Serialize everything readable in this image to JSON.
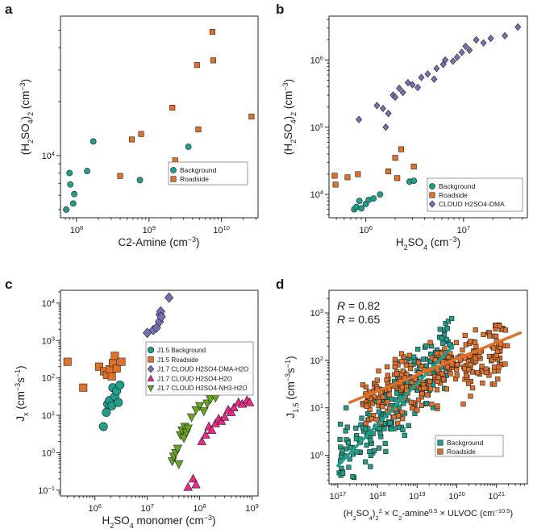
{
  "colors": {
    "background": "#1f9e89",
    "roadside": "#e0712b",
    "dma": "#7570b3",
    "h2o": "#e7298a",
    "nh3": "#66a61e"
  },
  "chart_data": [
    {
      "panel": "a",
      "type": "scatter",
      "xlabel": "C2-Amine (cm-3)",
      "ylabel": "(H2SO4)2 (cm-3)",
      "xscale": "log",
      "yscale": "log",
      "xlim": [
        60000000.0,
        32000000000.0
      ],
      "ylim": [
        4500,
        60000
      ],
      "xticks": [
        100000000.0,
        1000000000.0,
        10000000000.0
      ],
      "xtick_labels": [
        "10^8",
        "10^9",
        "10^10"
      ],
      "yticks": [
        10000.0
      ],
      "ytick_labels": [
        "10^4"
      ],
      "legend": {
        "position": "lower-right",
        "entries": [
          "Background",
          "Roadside"
        ]
      },
      "series": [
        {
          "name": "Background",
          "color": "#1f9e89",
          "marker": "circle",
          "points": [
            [
              72000000.0,
              5000
            ],
            [
              80000000.0,
              8000
            ],
            [
              82000000.0,
              6900
            ],
            [
              90000000.0,
              5400
            ],
            [
              93000000.0,
              6100
            ],
            [
              140000000.0,
              8200
            ],
            [
              170000000.0,
              12000
            ],
            [
              750000000.0,
              7300
            ],
            [
              3500000000.0,
              11200
            ]
          ]
        },
        {
          "name": "Roadside",
          "color": "#e0712b",
          "marker": "square",
          "points": [
            [
              400000000.0,
              7700
            ],
            [
              580000000.0,
              12300
            ],
            [
              780000000.0,
              13200
            ],
            [
              2100000000.0,
              18500
            ],
            [
              2300000000.0,
              9400
            ],
            [
              4800000000.0,
              14000
            ],
            [
              4600000000.0,
              32000
            ],
            [
              7500000000.0,
              49000
            ],
            [
              7700000000.0,
              34000
            ],
            [
              26000000000.0,
              16500
            ]
          ]
        }
      ]
    },
    {
      "panel": "b",
      "type": "scatter",
      "xlabel": "H2SO4 (cm-3)",
      "ylabel": "(H2SO4)2 (cm-3)",
      "xscale": "log",
      "yscale": "log",
      "xlim": [
        420000.0,
        45000000.0
      ],
      "ylim": [
        4500,
        4500000.0
      ],
      "xticks": [
        1000000.0,
        10000000.0
      ],
      "xtick_labels": [
        "10^6",
        "10^7"
      ],
      "yticks": [
        10000.0,
        100000.0,
        1000000.0
      ],
      "ytick_labels": [
        "10^4",
        "10^5",
        "10^6"
      ],
      "legend": {
        "position": "lower-right",
        "entries": [
          "Background",
          "Roadside",
          "CLOUD H2SO4-DMA"
        ]
      },
      "series": [
        {
          "name": "Background",
          "color": "#1f9e89",
          "marker": "circle",
          "points": [
            [
              760000.0,
              6000
            ],
            [
              800000.0,
              6500
            ],
            [
              860000.0,
              8000
            ],
            [
              900000.0,
              6200
            ],
            [
              1000000.0,
              7200
            ],
            [
              1070000.0,
              8300
            ],
            [
              1200000.0,
              8700
            ],
            [
              1400000.0,
              10000
            ],
            [
              2800000.0,
              15500
            ],
            [
              3100000.0,
              16000
            ]
          ]
        },
        {
          "name": "Roadside",
          "color": "#e0712b",
          "marker": "square",
          "points": [
            [
              480000.0,
              19000
            ],
            [
              490000.0,
              14000
            ],
            [
              650000.0,
              18000
            ],
            [
              830000.0,
              20000
            ],
            [
              1700000.0,
              22000
            ],
            [
              2000000.0,
              35000
            ],
            [
              2100000.0,
              17500
            ],
            [
              2300000.0,
              47000
            ],
            [
              3100000.0,
              26000
            ]
          ]
        },
        {
          "name": "CLOUD H2SO4-DMA",
          "color": "#7570b3",
          "marker": "diamond",
          "points": [
            [
              850000.0,
              130000.0
            ],
            [
              1300000.0,
              210000.0
            ],
            [
              1500000.0,
              190000.0
            ],
            [
              1600000.0,
              100000.0
            ],
            [
              1700000.0,
              160000.0
            ],
            [
              1900000.0,
              300000.0
            ],
            [
              2000000.0,
              280000.0
            ],
            [
              2200000.0,
              380000.0
            ],
            [
              2400000.0,
              330000.0
            ],
            [
              2700000.0,
              460000.0
            ],
            [
              3000000.0,
              430000.0
            ],
            [
              3400000.0,
              390000.0
            ],
            [
              3700000.0,
              550000.0
            ],
            [
              4300000.0,
              620000.0
            ],
            [
              5000000.0,
              520000.0
            ],
            [
              5300000.0,
              750000.0
            ],
            [
              6200000.0,
              860000.0
            ],
            [
              6500000.0,
              1000000.0
            ],
            [
              7800000.0,
              960000.0
            ],
            [
              8600000.0,
              1100000.0
            ],
            [
              9600000.0,
              1300000.0
            ],
            [
              10500000.0,
              1600000.0
            ],
            [
              11500000.0,
              1400000.0
            ],
            [
              13500000.0,
              2000000.0
            ],
            [
              16000000.0,
              1800000.0
            ],
            [
              19000000.0,
              2100000.0
            ],
            [
              26500000.0,
              2300000.0
            ],
            [
              36000000.0,
              3100000.0
            ]
          ]
        }
      ]
    },
    {
      "panel": "c",
      "type": "scatter",
      "xlabel": "H2SO4 monomer (cm-3)",
      "ylabel": "Jx (cm-3s-1)",
      "xscale": "log",
      "yscale": "log",
      "xlim": [
        220000.0,
        1300000000.0
      ],
      "ylim": [
        0.07,
        22000.0
      ],
      "xticks": [
        1000000.0,
        10000000.0,
        100000000.0,
        1000000000.0
      ],
      "xtick_labels": [
        "10^6",
        "10^7",
        "10^8",
        "10^9"
      ],
      "yticks": [
        0.1,
        1,
        10,
        100,
        1000,
        10000
      ],
      "ytick_labels": [
        "10^-1",
        "10^0",
        "10^1",
        "10^2",
        "10^3",
        "10^4"
      ],
      "legend": {
        "position": "top-right",
        "entries": [
          "J1.5 Background",
          "J1.5 Roadside",
          "J1.7 CLOUD H2SO4-DMA-H2O",
          "J1.7 CLOUD H2SO4-H2O",
          "J1.7 CLOUD H2SO4-NH3-H2O"
        ]
      },
      "series": [
        {
          "name": "J1.5 Background",
          "color": "#1f9e89",
          "marker": "circle",
          "points": [
            [
              1450000.0,
              5
            ],
            [
              1650000.0,
              12
            ],
            [
              1750000.0,
              20
            ],
            [
              1900000.0,
              25
            ],
            [
              2100000.0,
              18
            ],
            [
              2200000.0,
              55
            ],
            [
              2400000.0,
              32
            ],
            [
              2600000.0,
              45
            ],
            [
              2800000.0,
              22
            ],
            [
              3000000.0,
              65
            ]
          ]
        },
        {
          "name": "J1.5 Roadside",
          "color": "#e0712b",
          "marker": "square",
          "points": [
            [
              300000.0,
              270
            ],
            [
              600000.0,
              55
            ],
            [
              1200000.0,
              200
            ],
            [
              1500000.0,
              150
            ],
            [
              1700000.0,
              120
            ],
            [
              1900000.0,
              170
            ],
            [
              2100000.0,
              110
            ],
            [
              2200000.0,
              250
            ],
            [
              2400000.0,
              390
            ],
            [
              2600000.0,
              180
            ],
            [
              3200000.0,
              270
            ]
          ]
        },
        {
          "name": "J1.7 CLOUD H2SO4-DMA-H2O",
          "color": "#7570b3",
          "marker": "diamond",
          "points": [
            [
              10000000.0,
              1600
            ],
            [
              13000000.0,
              1900
            ],
            [
              15000000.0,
              2200
            ],
            [
              17000000.0,
              3200
            ],
            [
              17500000.0,
              5000
            ],
            [
              18000000.0,
              6000
            ],
            [
              18500000.0,
              4300
            ],
            [
              26000000.0,
              14000
            ]
          ]
        },
        {
          "name": "J1.7 CLOUD H2SO4-H2O",
          "color": "#e7298a",
          "marker": "triangle-up",
          "points": [
            [
              60000000.0,
              0.12
            ],
            [
              75000000.0,
              0.2
            ],
            [
              85000000.0,
              0.14
            ],
            [
              110000000.0,
              2
            ],
            [
              130000000.0,
              3
            ],
            [
              150000000.0,
              5
            ],
            [
              170000000.0,
              4
            ],
            [
              200000000.0,
              6
            ],
            [
              230000000.0,
              8
            ],
            [
              260000000.0,
              7
            ],
            [
              300000000.0,
              9
            ],
            [
              350000000.0,
              14
            ],
            [
              400000000.0,
              12
            ],
            [
              450000000.0,
              16
            ],
            [
              550000000.0,
              22
            ],
            [
              650000000.0,
              20
            ],
            [
              800000000.0,
              25
            ],
            [
              900000000.0,
              22
            ]
          ]
        },
        {
          "name": "J1.7 CLOUD H2SO4-NH3-H2O",
          "color": "#66a61e",
          "marker": "triangle-down",
          "points": [
            [
              30000000.0,
              0.6
            ],
            [
              32000000.0,
              0.8
            ],
            [
              35000000.0,
              1
            ],
            [
              38000000.0,
              1.3
            ],
            [
              40000000.0,
              0.5
            ],
            [
              43000000.0,
              3
            ],
            [
              46000000.0,
              4
            ],
            [
              50000000.0,
              2.5
            ],
            [
              52000000.0,
              5
            ],
            [
              56000000.0,
              3.5
            ],
            [
              60000000.0,
              4.5
            ],
            [
              70000000.0,
              9
            ],
            [
              85000000.0,
              14
            ],
            [
              100000000.0,
              18
            ],
            [
              120000000.0,
              13
            ],
            [
              140000000.0,
              21
            ],
            [
              160000000.0,
              27
            ],
            [
              200000000.0,
              30
            ]
          ]
        }
      ]
    },
    {
      "panel": "d",
      "type": "scatter",
      "xlabel": "(H2SO4)2^2 × C2-amine^0.5 × ULVOC (cm-10.5)",
      "ylabel": "J1.5 (cm-3s-1)",
      "xscale": "log",
      "yscale": "log",
      "xlim": [
        6e+16,
        6e+21
      ],
      "ylim": [
        0.25,
        3000
      ],
      "xticks": [
        1e+17,
        1e+18,
        1e+19,
        1e+20,
        1e+21
      ],
      "xtick_labels": [
        "10^17",
        "10^18",
        "10^19",
        "10^20",
        "10^21"
      ],
      "yticks": [
        1,
        10,
        100,
        1000
      ],
      "ytick_labels": [
        "10^0",
        "10^1",
        "10^2",
        "10^3"
      ],
      "legend": {
        "position": "lower-right",
        "entries": [
          "Background",
          "Roadside"
        ]
      },
      "annotations": [
        {
          "text": "R = 0.82",
          "r": 0.82,
          "color": "#1f9e89"
        },
        {
          "text": "R = 0.65",
          "r": 0.65,
          "color": "#e0712b"
        }
      ],
      "fit_lines": [
        {
          "series": "Background",
          "x": [
            1e+17,
            8e+19
          ],
          "y": [
            0.6,
            200
          ]
        },
        {
          "series": "Roadside",
          "x": [
            2e+17,
            4e+21
          ],
          "y": [
            13,
            380
          ]
        }
      ],
      "series": [
        {
          "name": "Background",
          "color": "#1f9e89",
          "marker": "square",
          "cloud": {
            "n": 240,
            "log_x_range": [
              17.0,
              19.9
            ],
            "slope": 0.86,
            "intercept": -14.8,
            "scatter_dex": 0.35,
            "seed": 11
          }
        },
        {
          "name": "Roadside",
          "color": "#e0712b",
          "marker": "square",
          "cloud": {
            "n": 300,
            "log_x_range": [
              17.6,
              21.3
            ],
            "slope": 0.33,
            "intercept": -4.7,
            "scatter_dex": 0.3,
            "seed": 29
          }
        }
      ]
    }
  ]
}
